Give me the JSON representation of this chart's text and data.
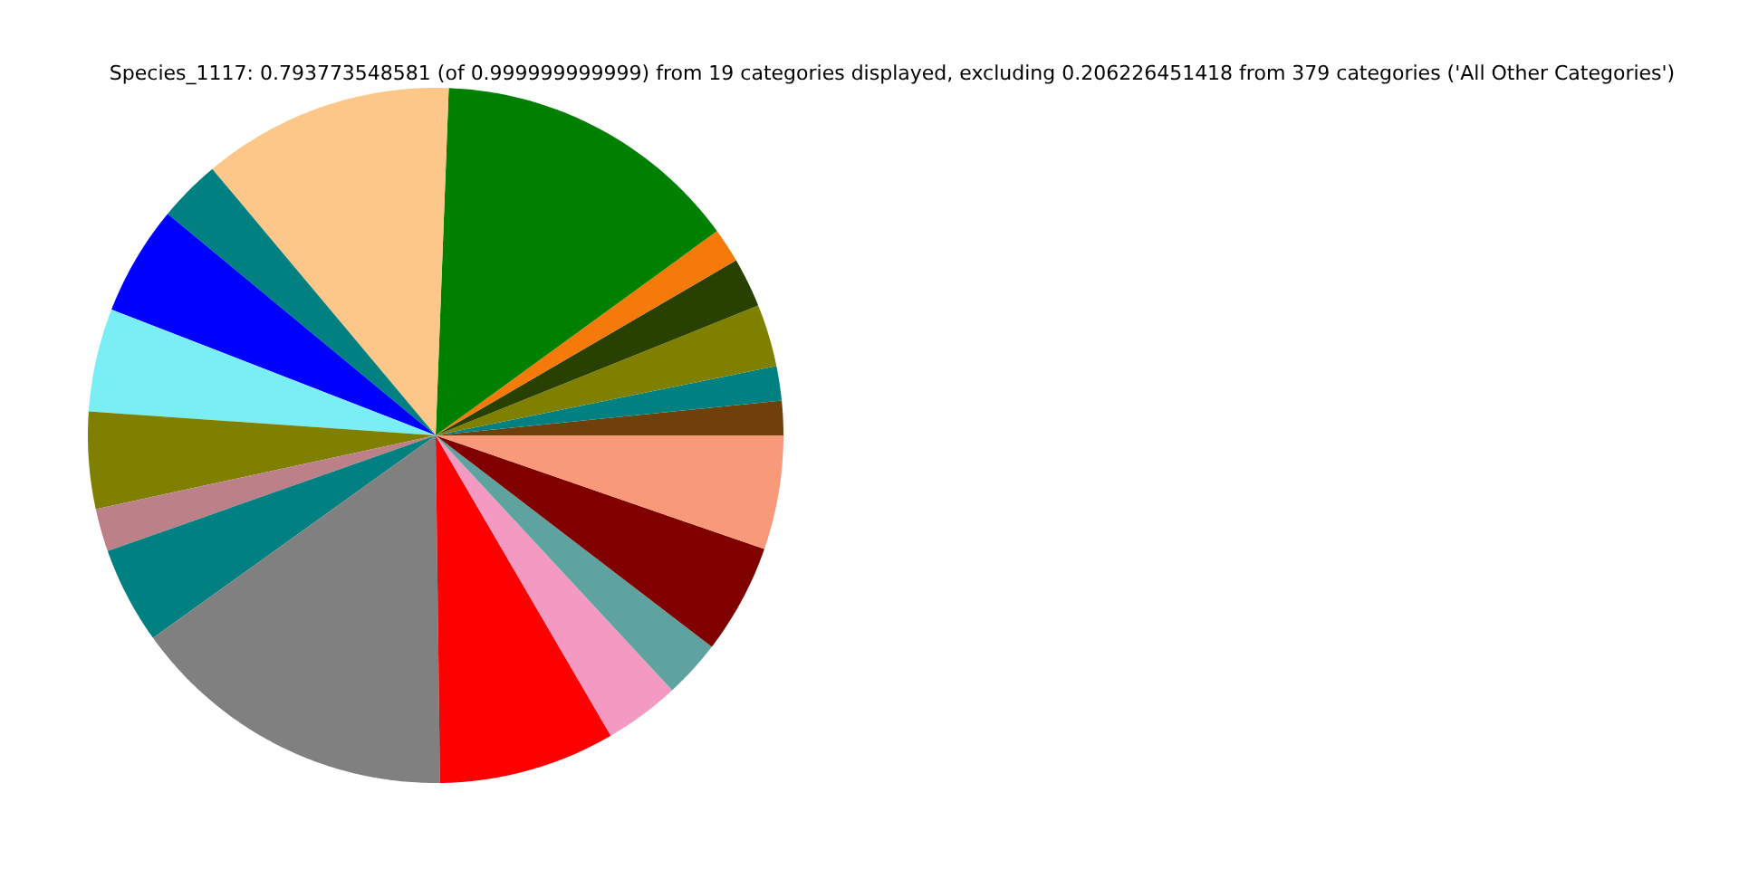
{
  "chart_data": {
    "type": "pie",
    "title": "Species_1117: 0.793773548581 (of 0.999999999999) from 19 categories displayed, excluding 0.206226451418 from 379 categories ('All Other Categories')",
    "categories": [
      null,
      null,
      null,
      null,
      null,
      null,
      null,
      null,
      null,
      null,
      null,
      null,
      null,
      null,
      null,
      null,
      null,
      null,
      null
    ],
    "values": [
      1.6,
      1.6,
      2.9,
      2.3,
      1.6,
      14.4,
      11.7,
      2.9,
      5.1,
      4.8,
      4.5,
      2.0,
      4.5,
      15.3,
      8.2,
      3.5,
      2.7,
      5.1,
      5.3
    ],
    "colors": [
      "#70400b",
      "#008080",
      "#808000",
      "#284000",
      "#f57a0a",
      "#008000",
      "#fdc78a",
      "#008080",
      "#0000ff",
      "#7aeef5",
      "#808000",
      "#bc8088",
      "#008080",
      "#808080",
      "#ff0000",
      "#f49ac2",
      "#5fa3a0",
      "#800000",
      "#f8997a"
    ]
  }
}
